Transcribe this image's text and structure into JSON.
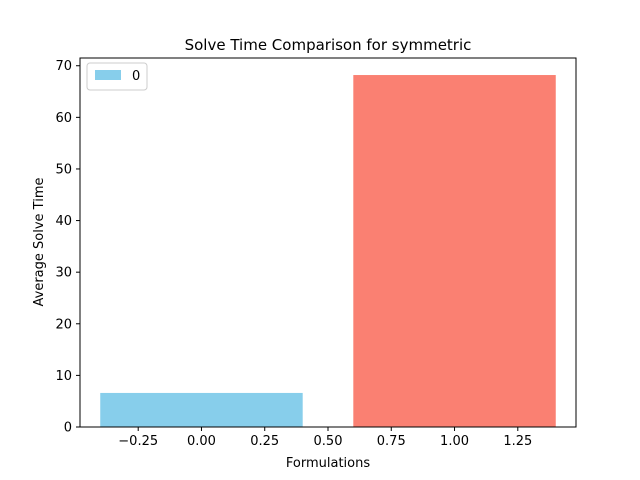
{
  "chart_data": {
    "type": "bar",
    "title": "Solve Time Comparison for symmetric",
    "xlabel": "Formulations",
    "ylabel": "Average Solve Time",
    "x_ticks": [
      "−0.25",
      "0.00",
      "0.25",
      "0.50",
      "0.75",
      "1.00",
      "1.25"
    ],
    "y_ticks": [
      "0",
      "10",
      "20",
      "30",
      "40",
      "50",
      "60",
      "70"
    ],
    "xlim": [
      -0.48,
      1.48
    ],
    "ylim": [
      0,
      71.5
    ],
    "bars": [
      {
        "x": 0,
        "width": 0.8,
        "value": 6.6,
        "color": "#87ceeb"
      },
      {
        "x": 1,
        "width": 0.8,
        "value": 68.2,
        "color": "#fa8072"
      }
    ],
    "legend": {
      "placement": "top-left",
      "entries": [
        {
          "label": "0",
          "color": "#87ceeb"
        }
      ]
    },
    "grid": false
  }
}
